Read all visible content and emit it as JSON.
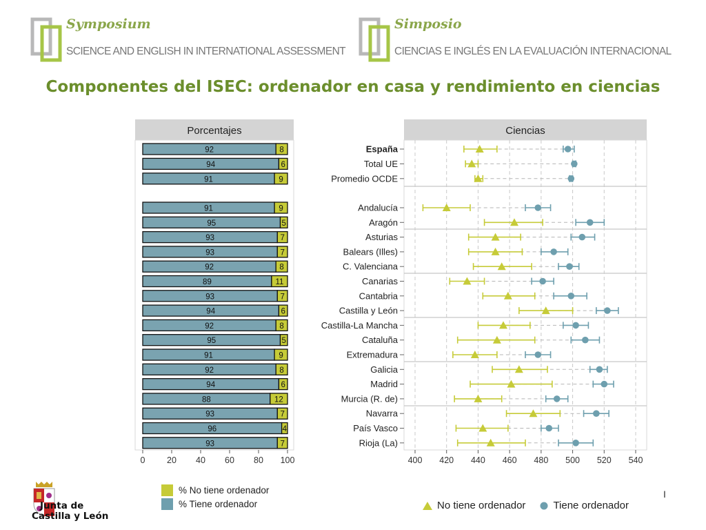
{
  "header": {
    "left": {
      "title": "Symposium",
      "subtitle": "SCIENCE AND ENGLISH IN INTERNATIONAL ASSESSMENT"
    },
    "right": {
      "title": "Simposio",
      "subtitle": "CIENCIAS E INGLÉS EN LA  EVALUACIÓN INTERNACIONAL"
    }
  },
  "title": "Componentes del ISEC: ordenador en casa y rendimiento en ciencias",
  "colors": {
    "no_tiene": "#c6cb38",
    "tiene": "#6e9fae",
    "bar_fill": "#7aa3b0",
    "accent": "#8aa64a"
  },
  "chart_data": [
    {
      "type": "bar",
      "orientation": "horizontal-stacked",
      "title": "Porcentajes",
      "xlim": [
        0,
        100
      ],
      "xticks": [
        0,
        20,
        40,
        60,
        80,
        100
      ],
      "tiene": [
        92,
        94,
        91,
        91,
        95,
        93,
        93,
        92,
        89,
        93,
        94,
        92,
        95,
        91,
        92,
        94,
        88,
        93,
        96,
        93
      ],
      "no_tiene": [
        8,
        6,
        9,
        9,
        5,
        7,
        7,
        8,
        11,
        7,
        6,
        8,
        5,
        9,
        8,
        6,
        12,
        7,
        4,
        7
      ],
      "legend": [
        "% No tiene ordenador",
        "% Tiene ordenador"
      ]
    },
    {
      "type": "scatter",
      "title": "Ciencias",
      "categories": [
        "España",
        "Total UE",
        "Promedio OCDE",
        "Andalucía",
        "Aragón",
        "Asturias",
        "Balears (Illes)",
        "C. Valenciana",
        "Canarias",
        "Cantabria",
        "Castilla y León",
        "Castilla-La Mancha",
        "Cataluña",
        "Extremadura",
        "Galicia",
        "Madrid",
        "Murcia (R. de)",
        "Navarra",
        "País Vasco",
        "Rioja (La)"
      ],
      "xlim": [
        400,
        540
      ],
      "xticks": [
        400,
        420,
        440,
        460,
        480,
        500,
        520,
        540
      ],
      "series": [
        {
          "name": "No tiene ordenador",
          "marker": "triangle",
          "values": [
            441,
            436,
            440,
            420,
            463,
            451,
            451,
            455,
            433,
            459,
            483,
            456,
            452,
            438,
            466,
            461,
            440,
            475,
            443,
            448
          ],
          "ci_low": [
            431,
            432,
            438,
            405,
            444,
            434,
            434,
            437,
            422,
            443,
            466,
            440,
            427,
            424,
            449,
            435,
            425,
            458,
            426,
            427
          ],
          "ci_high": [
            452,
            440,
            443,
            435,
            481,
            467,
            468,
            474,
            444,
            476,
            500,
            473,
            476,
            452,
            484,
            487,
            455,
            492,
            459,
            470
          ]
        },
        {
          "name": "Tiene ordenador",
          "marker": "circle",
          "values": [
            497,
            501,
            499,
            478,
            511,
            506,
            488,
            498,
            481,
            499,
            522,
            502,
            508,
            478,
            517,
            520,
            490,
            515,
            485,
            502
          ],
          "ci_low": [
            494,
            500,
            498,
            470,
            502,
            499,
            480,
            491,
            474,
            488,
            515,
            494,
            499,
            470,
            511,
            513,
            483,
            507,
            480,
            491
          ],
          "ci_high": [
            501,
            502,
            500,
            486,
            520,
            514,
            497,
            504,
            488,
            509,
            529,
            510,
            517,
            486,
            522,
            526,
            497,
            523,
            491,
            513
          ]
        }
      ],
      "legend_position": "bottom"
    }
  ],
  "footer": {
    "logo_text_1": "Junta de",
    "logo_text_2": "Castilla y León",
    "edge_mark": "I"
  }
}
